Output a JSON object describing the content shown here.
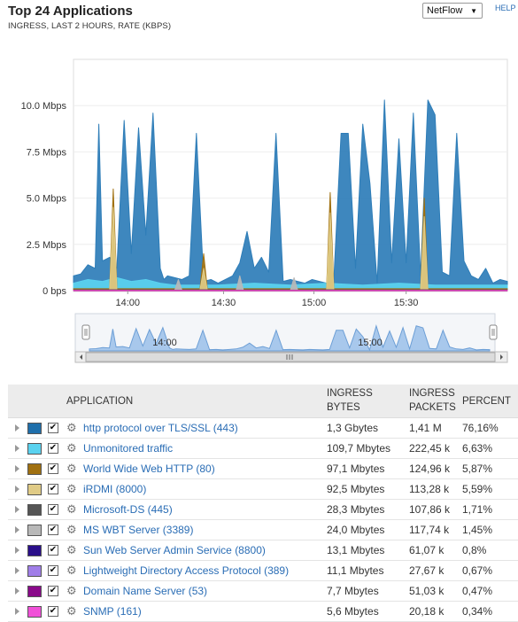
{
  "header": {
    "title": "Top 24 Applications",
    "subtitle": "INGRESS, LAST 2 HOURS, RATE (KBPS)",
    "select_value": "NetFlow",
    "help": "HELP"
  },
  "chart_data": {
    "type": "area",
    "ylabels": [
      "10.0 Mbps",
      "7.5 Mbps",
      "5.0 Mbps",
      "2.5 Mbps",
      "0 bps"
    ],
    "yticks": [
      10,
      7.5,
      5,
      2.5,
      0
    ],
    "ylim": [
      0,
      12.5
    ],
    "xlabels": [
      "14:00",
      "14:30",
      "15:00",
      "15:30"
    ],
    "navigator_labels": [
      "14:00",
      "15:00"
    ],
    "series": [
      {
        "name": "http protocol over TLS/SSL (443)",
        "color": "#2e7db8",
        "x": [
          0,
          2,
          4,
          6,
          7,
          8,
          10,
          12,
          14,
          16,
          18,
          20,
          22,
          24,
          25,
          26,
          28,
          30,
          32,
          34,
          36,
          38,
          40,
          42,
          44,
          46,
          48,
          50,
          52,
          54,
          56,
          58,
          60,
          62,
          64,
          66,
          68,
          70,
          72,
          74,
          76,
          78,
          80,
          82,
          84,
          86,
          88,
          90,
          92,
          94,
          96,
          98,
          100,
          102,
          104,
          106,
          108,
          110,
          112,
          114,
          116,
          118,
          120
        ],
        "values": [
          0.8,
          0.9,
          1.4,
          1.2,
          9.0,
          1.6,
          1.8,
          1.2,
          9.2,
          2.0,
          8.8,
          3.0,
          9.6,
          1.2,
          0.6,
          0.8,
          0.7,
          0.6,
          0.8,
          8.5,
          0.5,
          0.6,
          0.4,
          0.6,
          0.8,
          1.5,
          3.2,
          1.2,
          1.8,
          1.0,
          8.5,
          0.5,
          0.6,
          0.5,
          0.4,
          0.6,
          0.5,
          0.4,
          0.6,
          8.5,
          8.5,
          1.2,
          9.0,
          5.8,
          0.4,
          10.3,
          1.5,
          8.2,
          1.5,
          9.6,
          0.8,
          10.3,
          9.5,
          1.0,
          0.8,
          8.5,
          1.6,
          0.8,
          0.6,
          1.2,
          0.4,
          0.6,
          0.5
        ]
      },
      {
        "name": "Unmonitored traffic",
        "color": "#5ad2ef",
        "x": [
          0,
          4,
          8,
          12,
          16,
          20,
          24,
          28,
          32,
          40,
          50,
          60,
          70,
          80,
          90,
          100,
          110,
          120
        ],
        "values": [
          0.4,
          0.6,
          0.5,
          0.7,
          0.5,
          0.6,
          0.4,
          0.3,
          0.3,
          0.3,
          0.4,
          0.3,
          0.4,
          0.3,
          0.4,
          0.3,
          0.3,
          0.3
        ]
      },
      {
        "name": "World Wide Web HTTP (80)",
        "color": "#a07010",
        "x": [
          0,
          10,
          11,
          12,
          14,
          24,
          35,
          36,
          37,
          60,
          70,
          71,
          72,
          80,
          96,
          97,
          98,
          120
        ],
        "values": [
          0.1,
          0.1,
          5.5,
          0.1,
          0.1,
          0.1,
          0.1,
          2.0,
          0.1,
          0.1,
          0.1,
          5.3,
          0.1,
          0.1,
          0.1,
          5.0,
          0.1,
          0.1
        ]
      },
      {
        "name": "iRDMI (8000)",
        "color": "#e0cb86",
        "x": [
          0,
          10,
          11,
          12,
          24,
          35,
          36,
          37,
          60,
          70,
          71,
          72,
          96,
          97,
          98,
          120
        ],
        "values": [
          0.05,
          0.05,
          4.5,
          0.05,
          0.05,
          0.05,
          1.2,
          0.05,
          0.05,
          0.05,
          4.2,
          0.05,
          0.05,
          4.0,
          0.05,
          0.05
        ]
      },
      {
        "name": "Microsoft-DS (445)",
        "color": "#555555",
        "x": [
          0,
          120
        ],
        "values": [
          0.05,
          0.05
        ]
      },
      {
        "name": "MS WBT Server (3389)",
        "color": "#b8b8b8",
        "x": [
          0,
          28,
          29,
          30,
          45,
          46,
          47,
          60,
          61,
          62,
          120
        ],
        "values": [
          0.02,
          0.02,
          0.6,
          0.02,
          0.02,
          0.8,
          0.02,
          0.02,
          0.7,
          0.02,
          0.02
        ]
      },
      {
        "name": "SNMP (161)",
        "color": "#e040c0",
        "x": [
          0,
          120
        ],
        "values": [
          0.02,
          0.02
        ]
      }
    ]
  },
  "table": {
    "headers": {
      "application": "APPLICATION",
      "ingress_bytes_1": "INGRESS",
      "ingress_bytes_2": "BYTES",
      "ingress_packets_1": "INGRESS",
      "ingress_packets_2": "PACKETS",
      "percent": "PERCENT"
    },
    "rows": [
      {
        "color": "#1f6fab",
        "app": "http protocol over TLS/SSL (443)",
        "bytes": "1,3 Gbytes",
        "packets": "1,41 M",
        "percent": "76,16%"
      },
      {
        "color": "#5ad2ef",
        "app": "Unmonitored traffic",
        "bytes": "109,7 Mbytes",
        "packets": "222,45 k",
        "percent": "6,63%"
      },
      {
        "color": "#a07010",
        "app": "World Wide Web HTTP (80)",
        "bytes": "97,1 Mbytes",
        "packets": "124,96 k",
        "percent": "5,87%"
      },
      {
        "color": "#e0cb86",
        "app": "iRDMI (8000)",
        "bytes": "92,5 Mbytes",
        "packets": "113,28 k",
        "percent": "5,59%"
      },
      {
        "color": "#555555",
        "app": "Microsoft-DS (445)",
        "bytes": "28,3 Mbytes",
        "packets": "107,86 k",
        "percent": "1,71%"
      },
      {
        "color": "#b8b8b8",
        "app": "MS WBT Server (3389)",
        "bytes": "24,0 Mbytes",
        "packets": "117,74 k",
        "percent": "1,45%"
      },
      {
        "color": "#2a0f8a",
        "app": "Sun Web Server Admin Service (8800)",
        "bytes": "13,1 Mbytes",
        "packets": "61,07 k",
        "percent": "0,8%"
      },
      {
        "color": "#a07ee8",
        "app": "Lightweight Directory Access Protocol (389)",
        "bytes": "11,1 Mbytes",
        "packets": "27,67 k",
        "percent": "0,67%"
      },
      {
        "color": "#8a0a8a",
        "app": "Domain Name Server (53)",
        "bytes": "7,7 Mbytes",
        "packets": "51,03 k",
        "percent": "0,47%"
      },
      {
        "color": "#f050d8",
        "app": "SNMP (161)",
        "bytes": "5,6 Mbytes",
        "packets": "20,18 k",
        "percent": "0,34%"
      }
    ]
  }
}
